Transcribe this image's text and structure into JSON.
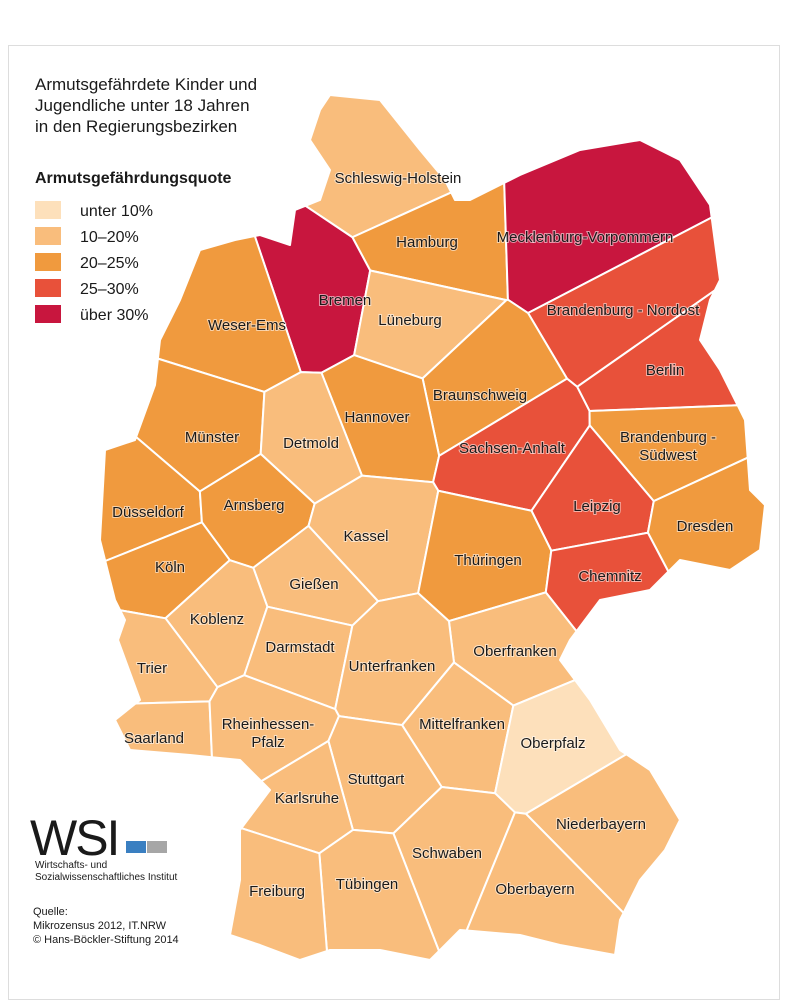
{
  "title_lines": [
    "Armutsgefährdete Kinder und",
    "Jugendliche unter 18 Jahren",
    "in den Regierungsbezirken"
  ],
  "legend": {
    "title": "Armutsgefährdungsquote",
    "items": [
      {
        "label": "unter 10%",
        "color": "#fde0bb"
      },
      {
        "label": "10–20%",
        "color": "#f9bd7c"
      },
      {
        "label": "20–25%",
        "color": "#f09a3e"
      },
      {
        "label": "25–30%",
        "color": "#e8513a"
      },
      {
        "label": "über 30%",
        "color": "#c8163e"
      }
    ]
  },
  "regions": [
    {
      "lines": [
        "Schleswig-Holstein"
      ],
      "category": "10–20%"
    },
    {
      "lines": [
        "Hamburg"
      ],
      "category": "20–25%"
    },
    {
      "lines": [
        "Mecklenburg-Vorpommern"
      ],
      "category": "über 30%"
    },
    {
      "lines": [
        "Bremen"
      ],
      "category": "über 30%"
    },
    {
      "lines": [
        "Weser-Ems"
      ],
      "category": "20–25%"
    },
    {
      "lines": [
        "Lüneburg"
      ],
      "category": "10–20%"
    },
    {
      "lines": [
        "Brandenburg - Nordost"
      ],
      "category": "25–30%"
    },
    {
      "lines": [
        "Berlin"
      ],
      "category": "25–30%"
    },
    {
      "lines": [
        "Braunschweig"
      ],
      "category": "20–25%"
    },
    {
      "lines": [
        "Hannover"
      ],
      "category": "20–25%"
    },
    {
      "lines": [
        "Münster"
      ],
      "category": "20–25%"
    },
    {
      "lines": [
        "Detmold"
      ],
      "category": "10–20%"
    },
    {
      "lines": [
        "Sachsen-Anhalt"
      ],
      "category": "25–30%"
    },
    {
      "lines": [
        "Brandenburg -",
        "Südwest"
      ],
      "category": "20–25%"
    },
    {
      "lines": [
        "Düsseldorf"
      ],
      "category": "20–25%"
    },
    {
      "lines": [
        "Arnsberg"
      ],
      "category": "20–25%"
    },
    {
      "lines": [
        "Kassel"
      ],
      "category": "10–20%"
    },
    {
      "lines": [
        "Leipzig"
      ],
      "category": "25–30%"
    },
    {
      "lines": [
        "Dresden"
      ],
      "category": "20–25%"
    },
    {
      "lines": [
        "Köln"
      ],
      "category": "20–25%"
    },
    {
      "lines": [
        "Thüringen"
      ],
      "category": "20–25%"
    },
    {
      "lines": [
        "Gießen"
      ],
      "category": "10–20%"
    },
    {
      "lines": [
        "Chemnitz"
      ],
      "category": "25–30%"
    },
    {
      "lines": [
        "Koblenz"
      ],
      "category": "10–20%"
    },
    {
      "lines": [
        "Darmstadt"
      ],
      "category": "10–20%"
    },
    {
      "lines": [
        "Oberfranken"
      ],
      "category": "10–20%"
    },
    {
      "lines": [
        "Trier"
      ],
      "category": "10–20%"
    },
    {
      "lines": [
        "Unterfranken"
      ],
      "category": "10–20%"
    },
    {
      "lines": [
        "Saarland"
      ],
      "category": "10–20%"
    },
    {
      "lines": [
        "Rheinhessen-",
        "Pfalz"
      ],
      "category": "10–20%"
    },
    {
      "lines": [
        "Mittelfranken"
      ],
      "category": "10–20%"
    },
    {
      "lines": [
        "Oberpfalz"
      ],
      "category": "unter 10%"
    },
    {
      "lines": [
        "Stuttgart"
      ],
      "category": "10–20%"
    },
    {
      "lines": [
        "Karlsruhe"
      ],
      "category": "10–20%"
    },
    {
      "lines": [
        "Niederbayern"
      ],
      "category": "10–20%"
    },
    {
      "lines": [
        "Schwaben"
      ],
      "category": "10–20%"
    },
    {
      "lines": [
        "Tübingen"
      ],
      "category": "10–20%"
    },
    {
      "lines": [
        "Oberbayern"
      ],
      "category": "10–20%"
    },
    {
      "lines": [
        "Freiburg"
      ],
      "category": "10–20%"
    }
  ],
  "logo": {
    "name": "WSI",
    "lines": [
      "Wirtschafts- und",
      "Sozialwissenschaftliches Institut"
    ]
  },
  "source_lines": [
    "Quelle:",
    "Mikrozensus 2012, IT.NRW",
    "© Hans-Böckler-Stiftung 2014"
  ]
}
